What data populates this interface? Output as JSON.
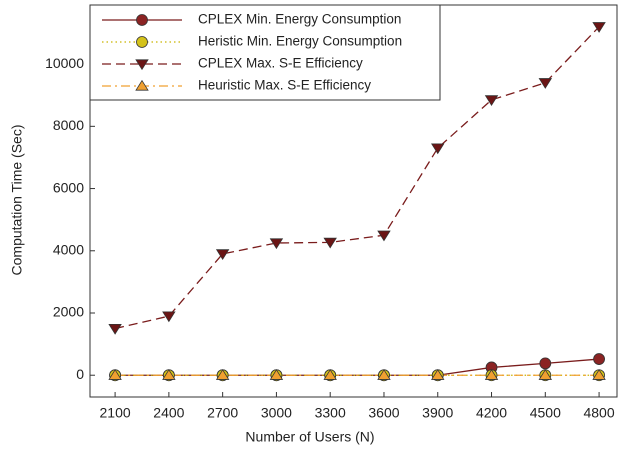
{
  "chart_data": {
    "type": "line",
    "x_label": "Number of Users (N)",
    "y_label": "Computation Time (Sec)",
    "x": [
      2100,
      2400,
      2700,
      3000,
      3300,
      3600,
      3900,
      4200,
      4500,
      4800
    ],
    "xlim": [
      1960,
      4900
    ],
    "xticks": [
      2100,
      2400,
      2700,
      3000,
      3300,
      3600,
      3900,
      4200,
      4500,
      4800
    ],
    "ylim": [
      -700,
      11900
    ],
    "yticks": [
      0,
      2000,
      4000,
      6000,
      8000,
      10000
    ],
    "grid": false,
    "legend": "upper left",
    "series": [
      {
        "name": "CPLEX Min. Energy Consumption",
        "color": "#7a1c1c",
        "marker": "circle",
        "marker_color": "#8b2323",
        "dash": "solid",
        "values": [
          0,
          0,
          0,
          0,
          0,
          0,
          0,
          250,
          380,
          520
        ]
      },
      {
        "name": "Heristic Min. Energy Consumption",
        "color": "#c9b400",
        "marker": "circle",
        "marker_color": "#d4c21a",
        "dash": "dotted",
        "values": [
          0,
          0,
          0,
          0,
          0,
          0,
          0,
          0,
          0,
          0
        ]
      },
      {
        "name": "CPLEX Max. S-E Efficiency",
        "color": "#7a1c1c",
        "marker": "triangle-down",
        "marker_color": "#6b1515",
        "dash": "dashed",
        "values": [
          1500,
          1900,
          3900,
          4250,
          4270,
          4500,
          7300,
          8850,
          9400,
          11200
        ]
      },
      {
        "name": "Heuristic Max. S-E Efficiency",
        "color": "#f0a030",
        "marker": "triangle-up",
        "marker_color": "#f0a030",
        "dash": "dashdot",
        "values": [
          0,
          0,
          0,
          0,
          0,
          0,
          0,
          0,
          0,
          0
        ]
      }
    ]
  }
}
